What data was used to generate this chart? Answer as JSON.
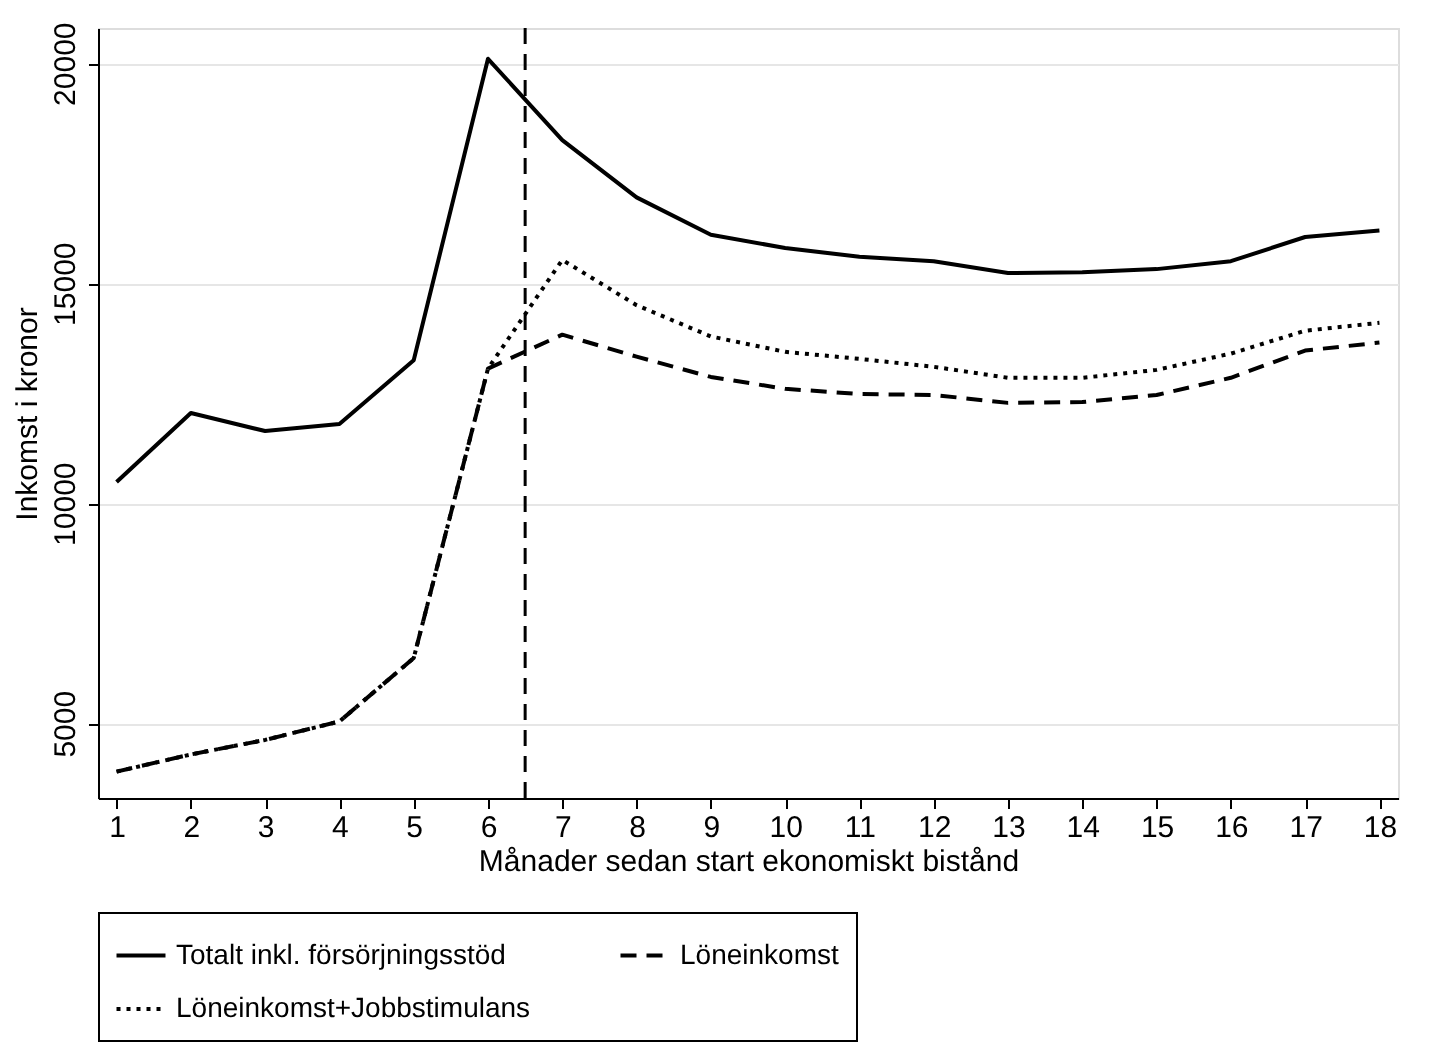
{
  "chart_data": {
    "type": "line",
    "xlabel": "Månader sedan start ekonomiskt bistånd",
    "ylabel": "Inkomst i kronor",
    "x": [
      1,
      2,
      3,
      4,
      5,
      6,
      7,
      8,
      9,
      10,
      11,
      12,
      13,
      14,
      15,
      16,
      17,
      18
    ],
    "series": [
      {
        "name": "Totalt inkl. försörjningsstöd",
        "color": "#000000",
        "line_style": "solid",
        "values": [
          10480,
          12050,
          11640,
          11800,
          13250,
          20100,
          18250,
          16950,
          16100,
          15800,
          15600,
          15500,
          15230,
          15250,
          15320,
          15500,
          16050,
          16200
        ]
      },
      {
        "name": "Löneinkomst",
        "color": "#000000",
        "line_style": "dashed",
        "values": [
          3900,
          4290,
          4620,
          5040,
          6480,
          13060,
          13830,
          13330,
          12870,
          12600,
          12480,
          12460,
          12280,
          12300,
          12460,
          12850,
          13470,
          13650
        ]
      },
      {
        "name": "Löneinkomst+Jobbstimulans",
        "color": "#000000",
        "line_style": "dotted",
        "values": [
          3900,
          4290,
          4620,
          5040,
          6480,
          13060,
          15530,
          14500,
          13790,
          13440,
          13280,
          13100,
          12850,
          12850,
          13030,
          13400,
          13920,
          14100
        ]
      }
    ],
    "xlim": [
      0.75,
      18.25
    ],
    "xticks": [
      1,
      2,
      3,
      4,
      5,
      6,
      7,
      8,
      9,
      10,
      11,
      12,
      13,
      14,
      15,
      16,
      17,
      18
    ],
    "ylim": [
      3300,
      20800
    ],
    "yticks": [
      5000,
      10000,
      15000,
      20000
    ],
    "grid": "y",
    "legend": "bottom",
    "marker": "none",
    "ref_lines": [
      {
        "axis": "x",
        "value": 6.5,
        "line_style": "dashed",
        "color": "#000000"
      }
    ]
  }
}
